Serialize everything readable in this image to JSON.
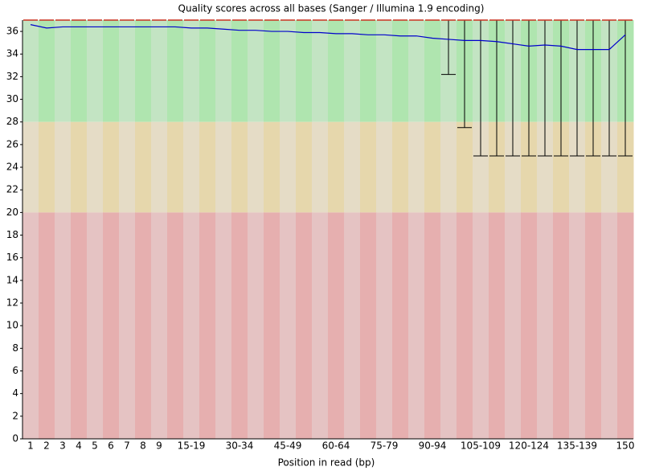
{
  "chart_data": {
    "type": "box-quality",
    "title": "Quality scores across all bases (Sanger / Illumina 1.9 encoding)",
    "x_label": "Position in read (bp)",
    "categories": [
      "1",
      "2",
      "3",
      "4",
      "5",
      "6",
      "7",
      "8",
      "9",
      null,
      "15-19",
      null,
      null,
      "30-34",
      null,
      null,
      "45-49",
      null,
      null,
      "60-64",
      null,
      null,
      "75-79",
      null,
      null,
      "90-94",
      null,
      null,
      "105-109",
      null,
      null,
      "120-124",
      null,
      null,
      "135-139",
      null,
      null,
      "150"
    ],
    "series": [
      {
        "name": "Mean",
        "color": "#0000cc",
        "values": [
          36.6,
          36.3,
          36.4,
          36.4,
          36.4,
          36.4,
          36.4,
          36.4,
          36.4,
          36.4,
          36.3,
          36.3,
          36.2,
          36.1,
          36.1,
          36.0,
          36.0,
          35.9,
          35.9,
          35.8,
          35.8,
          35.7,
          35.7,
          35.6,
          35.6,
          35.4,
          35.3,
          35.2,
          35.2,
          35.1,
          34.9,
          34.7,
          34.8,
          34.7,
          34.4,
          34.4,
          34.4,
          35.7
        ]
      },
      {
        "name": "Lower whisker",
        "color": "#000000",
        "values": [
          37,
          37,
          37,
          37,
          37,
          37,
          37,
          37,
          37,
          37,
          37,
          37,
          37,
          37,
          37,
          37,
          37,
          37,
          37,
          37,
          37,
          37,
          37,
          37,
          37,
          37,
          32.2,
          27.5,
          25,
          25,
          25,
          25,
          25,
          25,
          25,
          25,
          25,
          25
        ]
      },
      {
        "name": "Upper whisker",
        "color": "#000000",
        "values": [
          37,
          37,
          37,
          37,
          37,
          37,
          37,
          37,
          37,
          37,
          37,
          37,
          37,
          37,
          37,
          37,
          37,
          37,
          37,
          37,
          37,
          37,
          37,
          37,
          37,
          37,
          37,
          37,
          37,
          37,
          37,
          37,
          37,
          37,
          37,
          37,
          37,
          37
        ]
      },
      {
        "name": "Median",
        "color": "#cc3322",
        "values": [
          37,
          37,
          37,
          37,
          37,
          37,
          37,
          37,
          37,
          37,
          37,
          37,
          37,
          37,
          37,
          37,
          37,
          37,
          37,
          37,
          37,
          37,
          37,
          37,
          37,
          37,
          37,
          37,
          37,
          37,
          37,
          37,
          37,
          37,
          37,
          37,
          37,
          37
        ]
      }
    ],
    "zones": [
      {
        "from": 28,
        "to": 37,
        "colors": [
          "#c3e4c3",
          "#afe5af"
        ]
      },
      {
        "from": 20,
        "to": 28,
        "colors": [
          "#e5dcc6",
          "#e6d7ac"
        ]
      },
      {
        "from": 0,
        "to": 20,
        "colors": [
          "#e5c3c3",
          "#e6afaf"
        ]
      }
    ],
    "ylim": [
      0,
      37
    ],
    "yticks": [
      0,
      2,
      4,
      6,
      8,
      10,
      12,
      14,
      16,
      18,
      20,
      22,
      24,
      26,
      28,
      30,
      32,
      34,
      36
    ]
  }
}
